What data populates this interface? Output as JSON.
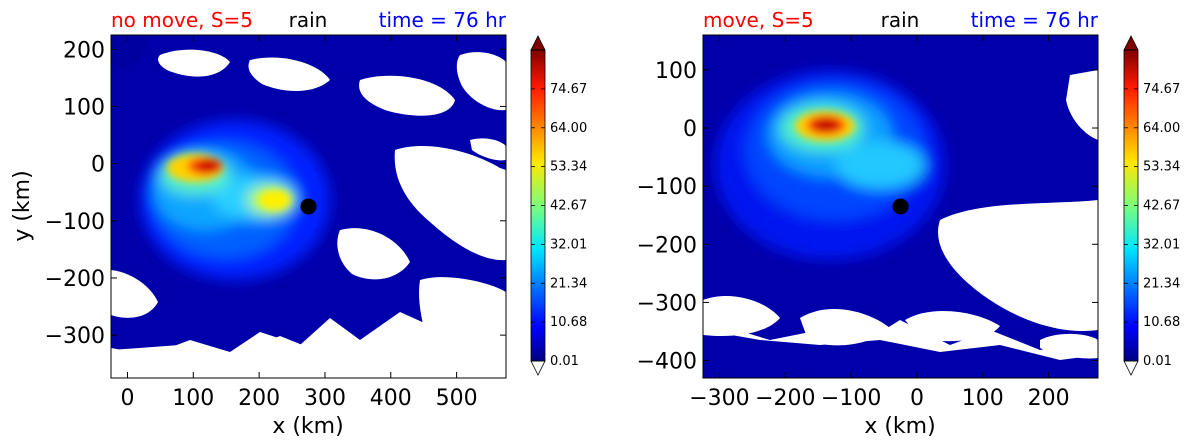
{
  "chart_data": [
    {
      "type": "heatmap",
      "title_left": "no move, S=5",
      "title_center": "rain",
      "title_right": "time = 76 hr",
      "title_colors": [
        "#ff0000",
        "#000000",
        "#0000ff"
      ],
      "xlabel": "x (km)",
      "ylabel": "y (km)",
      "xlim": [
        -25,
        575
      ],
      "ylim": [
        -375,
        225
      ],
      "xticks": [
        0,
        100,
        200,
        300,
        400,
        500
      ],
      "yticks": [
        -300,
        -200,
        -100,
        0,
        100,
        200
      ],
      "xtick_labels": [
        "0",
        "100",
        "200",
        "300",
        "400",
        "500"
      ],
      "ytick_labels": [
        "−300",
        "−200",
        "−100",
        "0",
        "100",
        "200"
      ],
      "marker": {
        "x": 275,
        "y": -75,
        "color": "#000000"
      },
      "colorbar": {
        "min": 0.01,
        "max": 85.34,
        "tick_values": [
          0.01,
          10.68,
          21.34,
          32.01,
          42.67,
          53.34,
          64.0,
          74.67
        ],
        "tick_labels": [
          "0.01",
          "10.68",
          "21.34",
          "32.01",
          "42.67",
          "53.34",
          "64.00",
          "74.67"
        ],
        "colormap": "jet",
        "extend": "both"
      }
    },
    {
      "type": "heatmap",
      "title_left": "move, S=5",
      "title_center": "rain",
      "title_right": "time = 76 hr",
      "title_colors": [
        "#ff0000",
        "#000000",
        "#0000ff"
      ],
      "xlabel": "x (km)",
      "ylabel": "",
      "xlim": [
        -325,
        275
      ],
      "ylim": [
        -430,
        160
      ],
      "xticks": [
        -300,
        -200,
        -100,
        0,
        100,
        200
      ],
      "yticks": [
        -400,
        -300,
        -200,
        -100,
        0,
        100
      ],
      "xtick_labels": [
        "−300",
        "−200",
        "−100",
        "0",
        "100",
        "200"
      ],
      "ytick_labels": [
        "−400",
        "−300",
        "−200",
        "−100",
        "0",
        "100"
      ],
      "marker": {
        "x": -25,
        "y": -135,
        "color": "#000000"
      },
      "colorbar": {
        "min": 0.01,
        "max": 85.34,
        "tick_values": [
          0.01,
          10.68,
          21.34,
          32.01,
          42.67,
          53.34,
          64.0,
          74.67
        ],
        "tick_labels": [
          "0.01",
          "10.68",
          "21.34",
          "32.01",
          "42.67",
          "53.34",
          "64.00",
          "74.67"
        ],
        "colormap": "jet",
        "extend": "both"
      }
    }
  ]
}
